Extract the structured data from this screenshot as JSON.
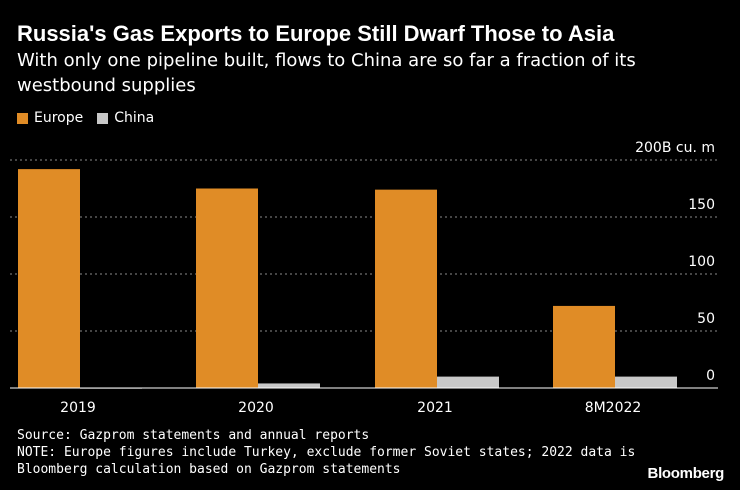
{
  "title": "Russia's Gas Exports to Europe Still Dwarf Those to Asia",
  "subtitle": "With only one pipeline built, flows to China are so far a fraction of its westbound supplies",
  "legend": [
    {
      "label": "Europe",
      "color": "#e08c26"
    },
    {
      "label": "China",
      "color": "#c8c8c8"
    }
  ],
  "footer": {
    "source": "Source: Gazprom statements and annual reports",
    "note_line1": "NOTE: Europe figures include Turkey, exclude former Soviet states; 2022 data is",
    "note_line2": "Bloomberg calculation based on Gazprom statements"
  },
  "brand": "Bloomberg",
  "chart_data": {
    "type": "bar",
    "title": "Russia's Gas Exports to Europe Still Dwarf Those to Asia",
    "subtitle": "With only one pipeline built, flows to China are so far a fraction of its westbound supplies",
    "categories": [
      "2019",
      "2020",
      "2021",
      "8M2022"
    ],
    "series": [
      {
        "name": "Europe",
        "color": "#e08c26",
        "values": [
          192,
          175,
          174,
          72
        ]
      },
      {
        "name": "China",
        "color": "#c8c8c8",
        "values": [
          0.3,
          4,
          10,
          10
        ]
      }
    ],
    "ylim": [
      0,
      200
    ],
    "yticks": [
      0,
      50,
      100,
      150,
      200
    ],
    "ytick_labels": [
      "0",
      "50",
      "100",
      "150",
      "200B cu. m"
    ],
    "ylabel": "",
    "xlabel": "",
    "grid": true,
    "legend_position": "top-left"
  }
}
